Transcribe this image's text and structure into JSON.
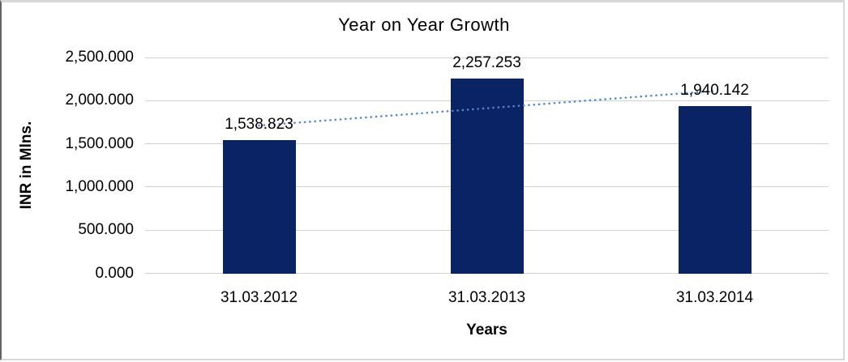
{
  "chart_data": {
    "type": "bar",
    "title": "Year on Year Growth",
    "xlabel": "Years",
    "ylabel": "INR in Mlns.",
    "categories": [
      "31.03.2012",
      "31.03.2013",
      "31.03.2014"
    ],
    "values": [
      1538.823,
      2257.253,
      1940.142
    ],
    "data_labels": [
      "1,538.823",
      "2,257.253",
      "1,940.142"
    ],
    "ylim": [
      0,
      2500
    ],
    "yticks": [
      {
        "value": 2500,
        "label": "2,500.000"
      },
      {
        "value": 2000,
        "label": "2,000.000"
      },
      {
        "value": 1500,
        "label": "1,500.000"
      },
      {
        "value": 1000,
        "label": "1,000.000"
      },
      {
        "value": 500,
        "label": "500.000"
      },
      {
        "value": 0,
        "label": "0.000"
      }
    ],
    "grid": true,
    "legend": false,
    "trendline": {
      "type": "linear",
      "style": "dotted",
      "endpoint_values": [
        1711.413,
        2112.732
      ],
      "color": "#5586c9"
    },
    "colors": {
      "bar": "#0a2364",
      "gridline": "#d2d2d2",
      "border": "#d8d8d8",
      "border_left": "#636363",
      "text": "#000000",
      "background": "#ffffff"
    }
  }
}
